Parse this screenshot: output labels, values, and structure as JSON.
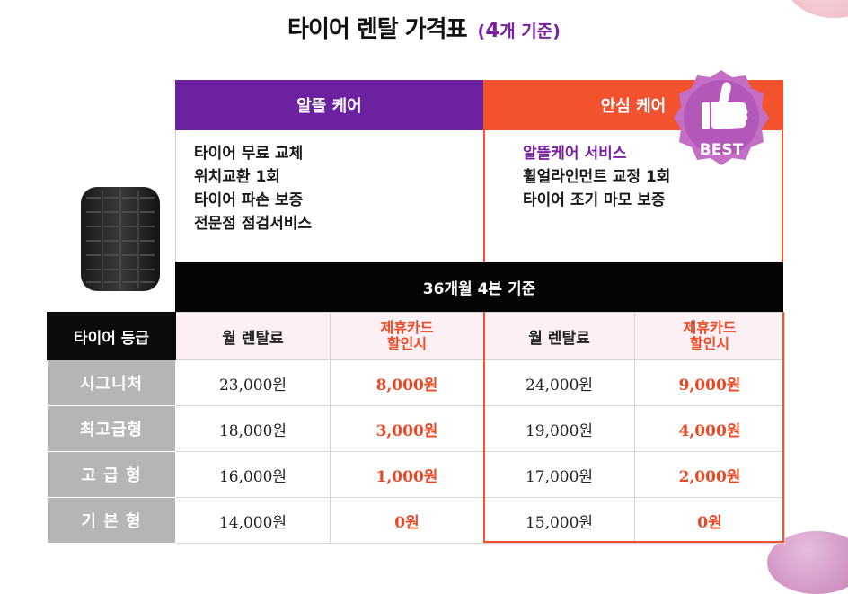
{
  "title": {
    "main": "타이어 렌탈 가격표",
    "sub_bold": "4",
    "sub_rest": "개 기준)",
    "sub_open": "("
  },
  "plans": {
    "left": {
      "name": "알뜰 케어",
      "features": [
        "타이어 무료 교체",
        "위치교환 1회",
        "타이어 파손 보증",
        "전문점 점검서비스"
      ],
      "color": "#6c22a0"
    },
    "right": {
      "name": "안심 케어",
      "features": [
        "알뜰케어 서비스",
        "휠얼라인먼트 교정 1회",
        "타이어 조기 마모 보증"
      ],
      "color": "#f2532e"
    }
  },
  "badge": {
    "text": "BEST",
    "icon": "thumbs-up-icon"
  },
  "base_label": "36개월 4본 기준",
  "table": {
    "grade_header": "타이어 등급",
    "col_monthly": "월 렌탈료",
    "col_card_line1": "제휴카드",
    "col_card_line2": "할인시",
    "rows": [
      {
        "grade": "시그니처",
        "a_monthly": "23,000원",
        "a_card": "8,000원",
        "b_monthly": "24,000원",
        "b_card": "9,000원"
      },
      {
        "grade": "최고급형",
        "a_monthly": "18,000원",
        "a_card": "3,000원",
        "b_monthly": "19,000원",
        "b_card": "4,000원"
      },
      {
        "grade": "고 급 형",
        "a_monthly": "16,000원",
        "a_card": "1,000원",
        "b_monthly": "17,000원",
        "b_card": "2,000원"
      },
      {
        "grade": "기 본 형",
        "a_monthly": "14,000원",
        "a_card": "0원",
        "b_monthly": "15,000원",
        "b_card": "0원"
      }
    ]
  }
}
